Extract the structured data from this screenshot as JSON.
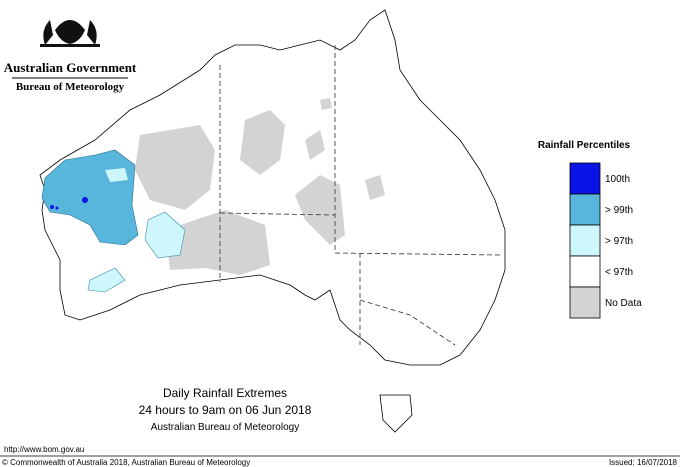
{
  "header": {
    "government": "Australian Government",
    "agency": "Bureau of Meteorology"
  },
  "legend": {
    "title": "Rainfall Percentiles",
    "items": [
      {
        "label": "100th",
        "color": "#0a14e6"
      },
      {
        "label": "> 99th",
        "color": "#58b6dc"
      },
      {
        "label": "> 97th",
        "color": "#cdf7fb"
      },
      {
        "label": "< 97th",
        "color": "#ffffff"
      },
      {
        "label": "No Data",
        "color": "#d3d3d3"
      }
    ]
  },
  "caption": {
    "title": "Daily Rainfall Extremes",
    "period": "24 hours to 9am on 06 Jun 2018",
    "source": "Australian Bureau of Meteorology"
  },
  "footer": {
    "url": "http://www.bom.gov.au",
    "copyright": "© Commonwealth of Australia 2018, Australian Bureau of Meteorology",
    "issued": "Issued: 16/07/2018"
  }
}
